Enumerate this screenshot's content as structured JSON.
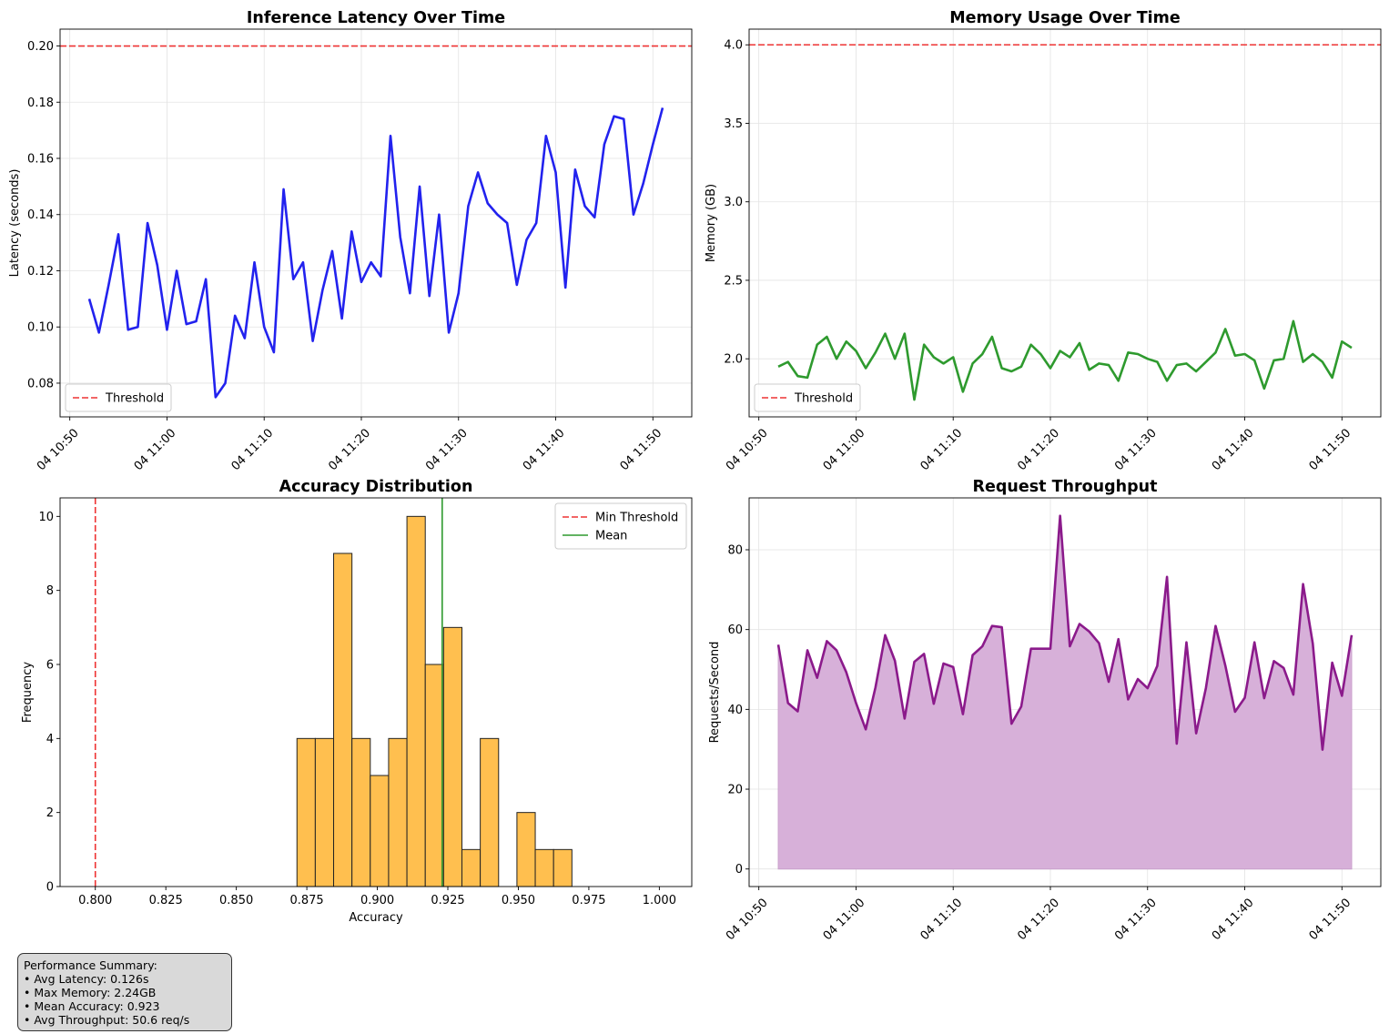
{
  "colors": {
    "latency": "#2222ee",
    "memory": "#2e9a2e",
    "throughput_line": "#8b1a8b",
    "throughput_fill": "#d7b0d9",
    "hist_bar": "#ffbf4f",
    "threshold": "#ee3333",
    "mean": "#2e9a2e"
  },
  "time_ticks": [
    "04 10:50",
    "04 11:00",
    "04 11:10",
    "04 11:20",
    "04 11:30",
    "04 11:40",
    "04 11:50"
  ],
  "chart_data": [
    {
      "id": "latency",
      "type": "line",
      "title": "Inference Latency Over Time",
      "xlabel": "",
      "ylabel": "Latency (seconds)",
      "x_start": "04 10:52",
      "x_step_minutes": 1,
      "xlim": [
        "04 10:49",
        "04 11:54"
      ],
      "ylim": [
        0.068,
        0.206
      ],
      "yticks": [
        "0.08",
        "0.10",
        "0.12",
        "0.14",
        "0.16",
        "0.18",
        "0.20"
      ],
      "threshold": 0.2,
      "legend": {
        "position": "lower-left",
        "entries": [
          "Threshold"
        ]
      },
      "grid": true,
      "values": [
        0.11,
        0.098,
        0.115,
        0.133,
        0.099,
        0.1,
        0.137,
        0.122,
        0.099,
        0.12,
        0.101,
        0.102,
        0.117,
        0.075,
        0.08,
        0.104,
        0.096,
        0.123,
        0.1,
        0.091,
        0.149,
        0.117,
        0.123,
        0.095,
        0.113,
        0.127,
        0.103,
        0.134,
        0.116,
        0.123,
        0.118,
        0.168,
        0.132,
        0.112,
        0.15,
        0.111,
        0.14,
        0.098,
        0.112,
        0.143,
        0.155,
        0.144,
        0.14,
        0.137,
        0.115,
        0.131,
        0.137,
        0.168,
        0.155,
        0.114,
        0.156,
        0.143,
        0.139,
        0.165,
        0.175,
        0.174,
        0.14,
        0.151,
        0.165,
        0.178
      ]
    },
    {
      "id": "memory",
      "type": "line",
      "title": "Memory Usage Over Time",
      "xlabel": "",
      "ylabel": "Memory (GB)",
      "x_start": "04 10:52",
      "x_step_minutes": 1,
      "xlim": [
        "04 10:49",
        "04 11:54"
      ],
      "ylim": [
        1.63,
        4.1
      ],
      "yticks": [
        "2.0",
        "2.5",
        "3.0",
        "3.5",
        "4.0"
      ],
      "threshold": 4.0,
      "legend": {
        "position": "lower-left",
        "entries": [
          "Threshold"
        ]
      },
      "grid": true,
      "values": [
        1.95,
        1.98,
        1.89,
        1.88,
        2.09,
        2.14,
        2.0,
        2.11,
        2.05,
        1.94,
        2.04,
        2.16,
        2.0,
        2.16,
        1.74,
        2.09,
        2.01,
        1.97,
        2.01,
        1.79,
        1.97,
        2.03,
        2.14,
        1.94,
        1.92,
        1.95,
        2.09,
        2.03,
        1.94,
        2.05,
        2.01,
        2.1,
        1.93,
        1.97,
        1.96,
        1.86,
        2.04,
        2.03,
        2.0,
        1.98,
        1.86,
        1.96,
        1.97,
        1.92,
        1.98,
        2.04,
        2.19,
        2.02,
        2.03,
        1.99,
        1.81,
        1.99,
        2.0,
        2.24,
        1.98,
        2.03,
        1.98,
        1.88,
        2.11,
        2.07
      ]
    },
    {
      "id": "accuracy",
      "type": "bar",
      "title": "Accuracy Distribution",
      "xlabel": "Accuracy",
      "ylabel": "Frequency",
      "xlim": [
        0.7875,
        1.0115
      ],
      "ylim": [
        0,
        10.5
      ],
      "xticks": [
        "0.800",
        "0.825",
        "0.850",
        "0.875",
        "0.900",
        "0.925",
        "0.950",
        "0.975",
        "1.000"
      ],
      "yticks": [
        "0",
        "2",
        "4",
        "6",
        "8",
        "10"
      ],
      "bin_start": 0.8715,
      "bin_width": 0.0065,
      "values": [
        4,
        4,
        9,
        4,
        3,
        4,
        10,
        6,
        7,
        1,
        4,
        0,
        2,
        1,
        1
      ],
      "min_threshold": 0.8,
      "mean": 0.923,
      "legend": {
        "position": "top-right",
        "entries": [
          "Min Threshold",
          "Mean"
        ]
      },
      "grid": false
    },
    {
      "id": "throughput",
      "type": "area",
      "title": "Request Throughput",
      "xlabel": "",
      "ylabel": "Requests/Second",
      "x_start": "04 10:52",
      "x_step_minutes": 1,
      "xlim": [
        "04 10:49",
        "04 11:54"
      ],
      "ylim": [
        -4.4,
        93
      ],
      "yticks": [
        "0",
        "20",
        "40",
        "60",
        "80"
      ],
      "grid": true,
      "values": [
        56.2,
        41.6,
        39.5,
        54.8,
        47.9,
        57.1,
        54.8,
        49.3,
        41.6,
        35.0,
        45.5,
        58.6,
        52.2,
        37.7,
        51.9,
        53.9,
        41.4,
        51.5,
        50.6,
        38.8,
        53.6,
        55.8,
        60.9,
        60.6,
        36.4,
        40.7,
        55.2,
        55.2,
        55.2,
        88.5,
        55.8,
        61.4,
        59.5,
        56.6,
        46.9,
        57.6,
        42.5,
        47.6,
        45.3,
        50.9,
        73.2,
        31.4,
        56.8,
        34.0,
        45.3,
        60.9,
        51.0,
        39.4,
        42.9,
        56.8,
        42.8,
        52.1,
        50.4,
        43.7,
        71.4,
        56.5,
        29.9,
        51.7,
        43.4,
        58.6
      ]
    }
  ],
  "summary": {
    "lines": [
      "Performance Summary:",
      "• Avg Latency: 0.126s",
      "• Max Memory: 2.24GB",
      "• Mean Accuracy: 0.923",
      "• Avg Throughput: 50.6 req/s"
    ]
  }
}
